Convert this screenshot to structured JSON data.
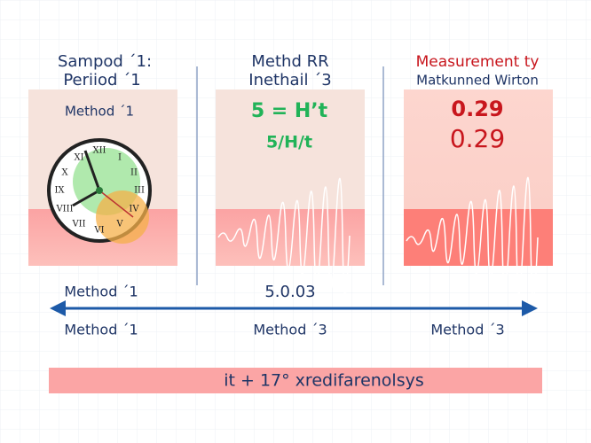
{
  "panels": [
    {
      "heading": [
        "Sampod ´1:",
        "Periiod ´1"
      ],
      "label": "Method ´1"
    },
    {
      "heading": [
        "Methd RR",
        "Inethail ´3"
      ],
      "lines": [
        "5 = H’t",
        "5/H/t"
      ]
    },
    {
      "heading": [
        "Measurement ty",
        "Matkunned Wirton"
      ],
      "lines": [
        "0.29",
        "0.29"
      ]
    }
  ],
  "arrow": {
    "top_labels": [
      "Method ´1",
      "5.0.03"
    ],
    "bottom_labels": [
      "Method ´1",
      "Method ´3",
      "Method ´3"
    ]
  },
  "footer": "it + 17° xredifarenolsys"
}
